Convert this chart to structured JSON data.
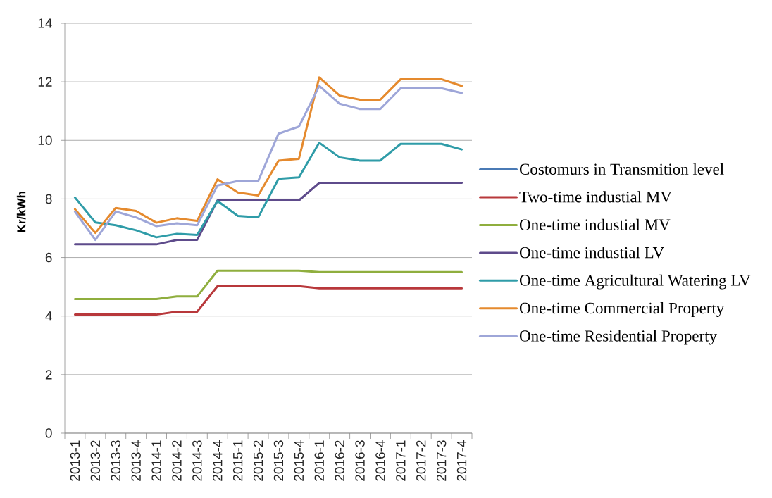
{
  "chart_data": {
    "type": "line",
    "ylabel": "Kr/kWh",
    "categories": [
      "2013-1",
      "2013-2",
      "2013-3",
      "2013-4",
      "2014-1",
      "2014-2",
      "2014-3",
      "2014-4",
      "2015-1",
      "2015-2",
      "2015-3",
      "2015-4",
      "2016-1",
      "2016-2",
      "2016-3",
      "2016-4",
      "2017-1",
      "2017-2",
      "2017-3",
      "2017-4"
    ],
    "ylim": [
      0,
      14
    ],
    "yticks": [
      0,
      2,
      4,
      6,
      8,
      10,
      12,
      14
    ],
    "grid": "y",
    "legend": "right",
    "line_style": "solid",
    "marker": "none",
    "series": [
      {
        "name": "Costomurs in Transmition level",
        "color": "#4a7ab5",
        "values": [
          null,
          null,
          null,
          null,
          null,
          null,
          null,
          null,
          null,
          null,
          null,
          null,
          null,
          null,
          null,
          null,
          null,
          null,
          null,
          null
        ]
      },
      {
        "name": "Two-time industial MV",
        "color": "#b8383b",
        "values": [
          4.05,
          4.05,
          4.05,
          4.05,
          4.05,
          4.15,
          4.15,
          5.02,
          5.02,
          5.02,
          5.02,
          5.02,
          4.95,
          4.95,
          4.95,
          4.95,
          4.95,
          4.95,
          4.95,
          4.95
        ]
      },
      {
        "name": "One-time industial MV",
        "color": "#8fae3e",
        "values": [
          4.58,
          4.58,
          4.58,
          4.58,
          4.58,
          4.67,
          4.67,
          5.55,
          5.55,
          5.55,
          5.55,
          5.55,
          5.5,
          5.5,
          5.5,
          5.5,
          5.5,
          5.5,
          5.5,
          5.5
        ]
      },
      {
        "name": "One-time industial LV",
        "color": "#5e4b8b",
        "values": [
          6.45,
          6.45,
          6.45,
          6.45,
          6.45,
          6.6,
          6.6,
          7.95,
          7.95,
          7.95,
          7.95,
          7.95,
          8.55,
          8.55,
          8.55,
          8.55,
          8.55,
          8.55,
          8.55,
          8.55
        ]
      },
      {
        "name": "One-time Agricultural Watering LV",
        "color": "#2f9ca8",
        "values": [
          8.05,
          7.2,
          7.1,
          6.93,
          6.69,
          6.81,
          6.77,
          7.93,
          7.42,
          7.37,
          8.69,
          8.74,
          9.92,
          9.42,
          9.31,
          9.31,
          9.88,
          9.88,
          9.88,
          9.69
        ]
      },
      {
        "name": "One-time Commercial Property",
        "color": "#e58a2e",
        "values": [
          7.65,
          6.84,
          7.69,
          7.59,
          7.19,
          7.34,
          7.25,
          8.67,
          8.22,
          8.12,
          9.31,
          9.37,
          12.15,
          11.53,
          11.39,
          11.39,
          12.09,
          12.09,
          12.09,
          11.86
        ]
      },
      {
        "name": "One-time Residential Property",
        "color": "#9ea6d8",
        "values": [
          7.57,
          6.6,
          7.57,
          7.37,
          7.07,
          7.17,
          7.1,
          8.46,
          8.61,
          8.61,
          10.23,
          10.47,
          11.86,
          11.25,
          11.07,
          11.07,
          11.78,
          11.78,
          11.78,
          11.62
        ]
      }
    ]
  }
}
